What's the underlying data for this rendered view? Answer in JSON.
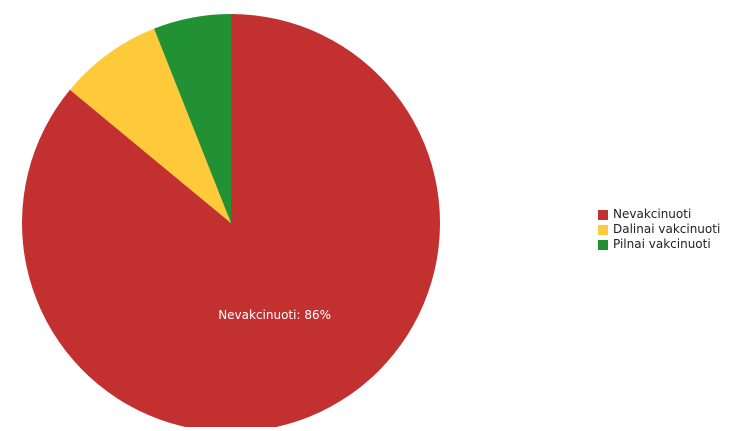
{
  "chart_data": {
    "type": "pie",
    "categories": [
      "Nevakcinuoti",
      "Dalinai vakcinuoti",
      "Pilnai vakcinuoti"
    ],
    "values": [
      86,
      8,
      6
    ],
    "unit": "%",
    "colors": [
      "#c23030",
      "#ffca3a",
      "#229133"
    ],
    "start_angle_deg": 0,
    "direction": "clockwise",
    "slice_labels": [
      "Nevakcinuoti: 86%",
      "",
      ""
    ],
    "legend": {
      "position": "right",
      "entries": [
        "Nevakcinuoti",
        "Dalinai vakcinuoti",
        "Pilnai vakcinuoti"
      ]
    }
  }
}
